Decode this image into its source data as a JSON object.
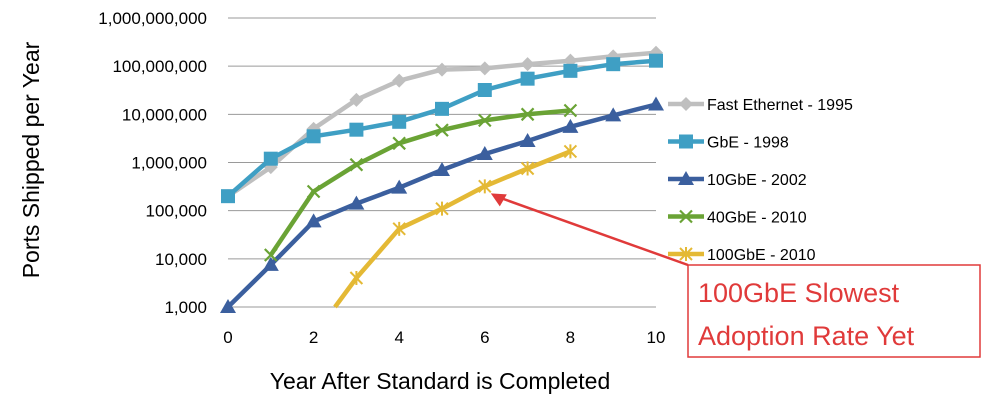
{
  "chart_data": {
    "type": "line",
    "xlabel": "Year After Standard is Completed",
    "ylabel": "Ports Shipped per Year",
    "x_ticks": [
      "0",
      "2",
      "4",
      "6",
      "8",
      "10"
    ],
    "y_ticks": [
      "1,000",
      "10,000",
      "100,000",
      "1,000,000",
      "10,000,000",
      "100,000,000",
      "1,000,000,000"
    ],
    "xlim": [
      0,
      10
    ],
    "ylim": [
      1000,
      1000000000
    ],
    "yscale": "log",
    "grid": "horizontal",
    "legend_position": "right",
    "series": [
      {
        "name": "Fast Ethernet - 1995",
        "color": "#bfbfbf",
        "marker": "diamond",
        "x": [
          0,
          1,
          2,
          3,
          4,
          5,
          6,
          7,
          8,
          9,
          10
        ],
        "values": [
          200000,
          800000,
          5000000,
          20000000,
          50000000,
          85000000,
          90000000,
          110000000,
          130000000,
          160000000,
          190000000
        ]
      },
      {
        "name": "GbE - 1998",
        "color": "#3f9fc4",
        "marker": "square",
        "x": [
          0,
          1,
          2,
          3,
          4,
          5,
          6,
          7,
          8,
          9,
          10
        ],
        "values": [
          200000,
          1200000,
          3500000,
          4800000,
          7000000,
          13000000,
          32000000,
          55000000,
          80000000,
          110000000,
          130000000
        ]
      },
      {
        "name": "10GbE - 2002",
        "color": "#3b5f9e",
        "marker": "triangle",
        "x": [
          0,
          1,
          2,
          3,
          4,
          5,
          6,
          7,
          8,
          9,
          10
        ],
        "values": [
          1000,
          7500,
          60000,
          140000,
          300000,
          700000,
          1500000,
          2800000,
          5500000,
          9500000,
          16000000
        ]
      },
      {
        "name": "40GbE - 2010",
        "color": "#6aa335",
        "marker": "x",
        "x": [
          1,
          2,
          3,
          4,
          5,
          6,
          7,
          8
        ],
        "values": [
          12000,
          250000,
          900000,
          2500000,
          4700000,
          7500000,
          10000000,
          12000000
        ]
      },
      {
        "name": "100GbE - 2010",
        "color": "#e4b935",
        "marker": "star",
        "x": [
          2.5,
          3,
          4,
          5,
          6,
          7,
          8
        ],
        "values": [
          1000,
          4000,
          42000,
          110000,
          320000,
          750000,
          1700000
        ]
      }
    ],
    "annotation": {
      "text_lines": [
        "100GbE Slowest",
        "Adoption Rate Yet"
      ],
      "color": "#e03a3a"
    }
  }
}
